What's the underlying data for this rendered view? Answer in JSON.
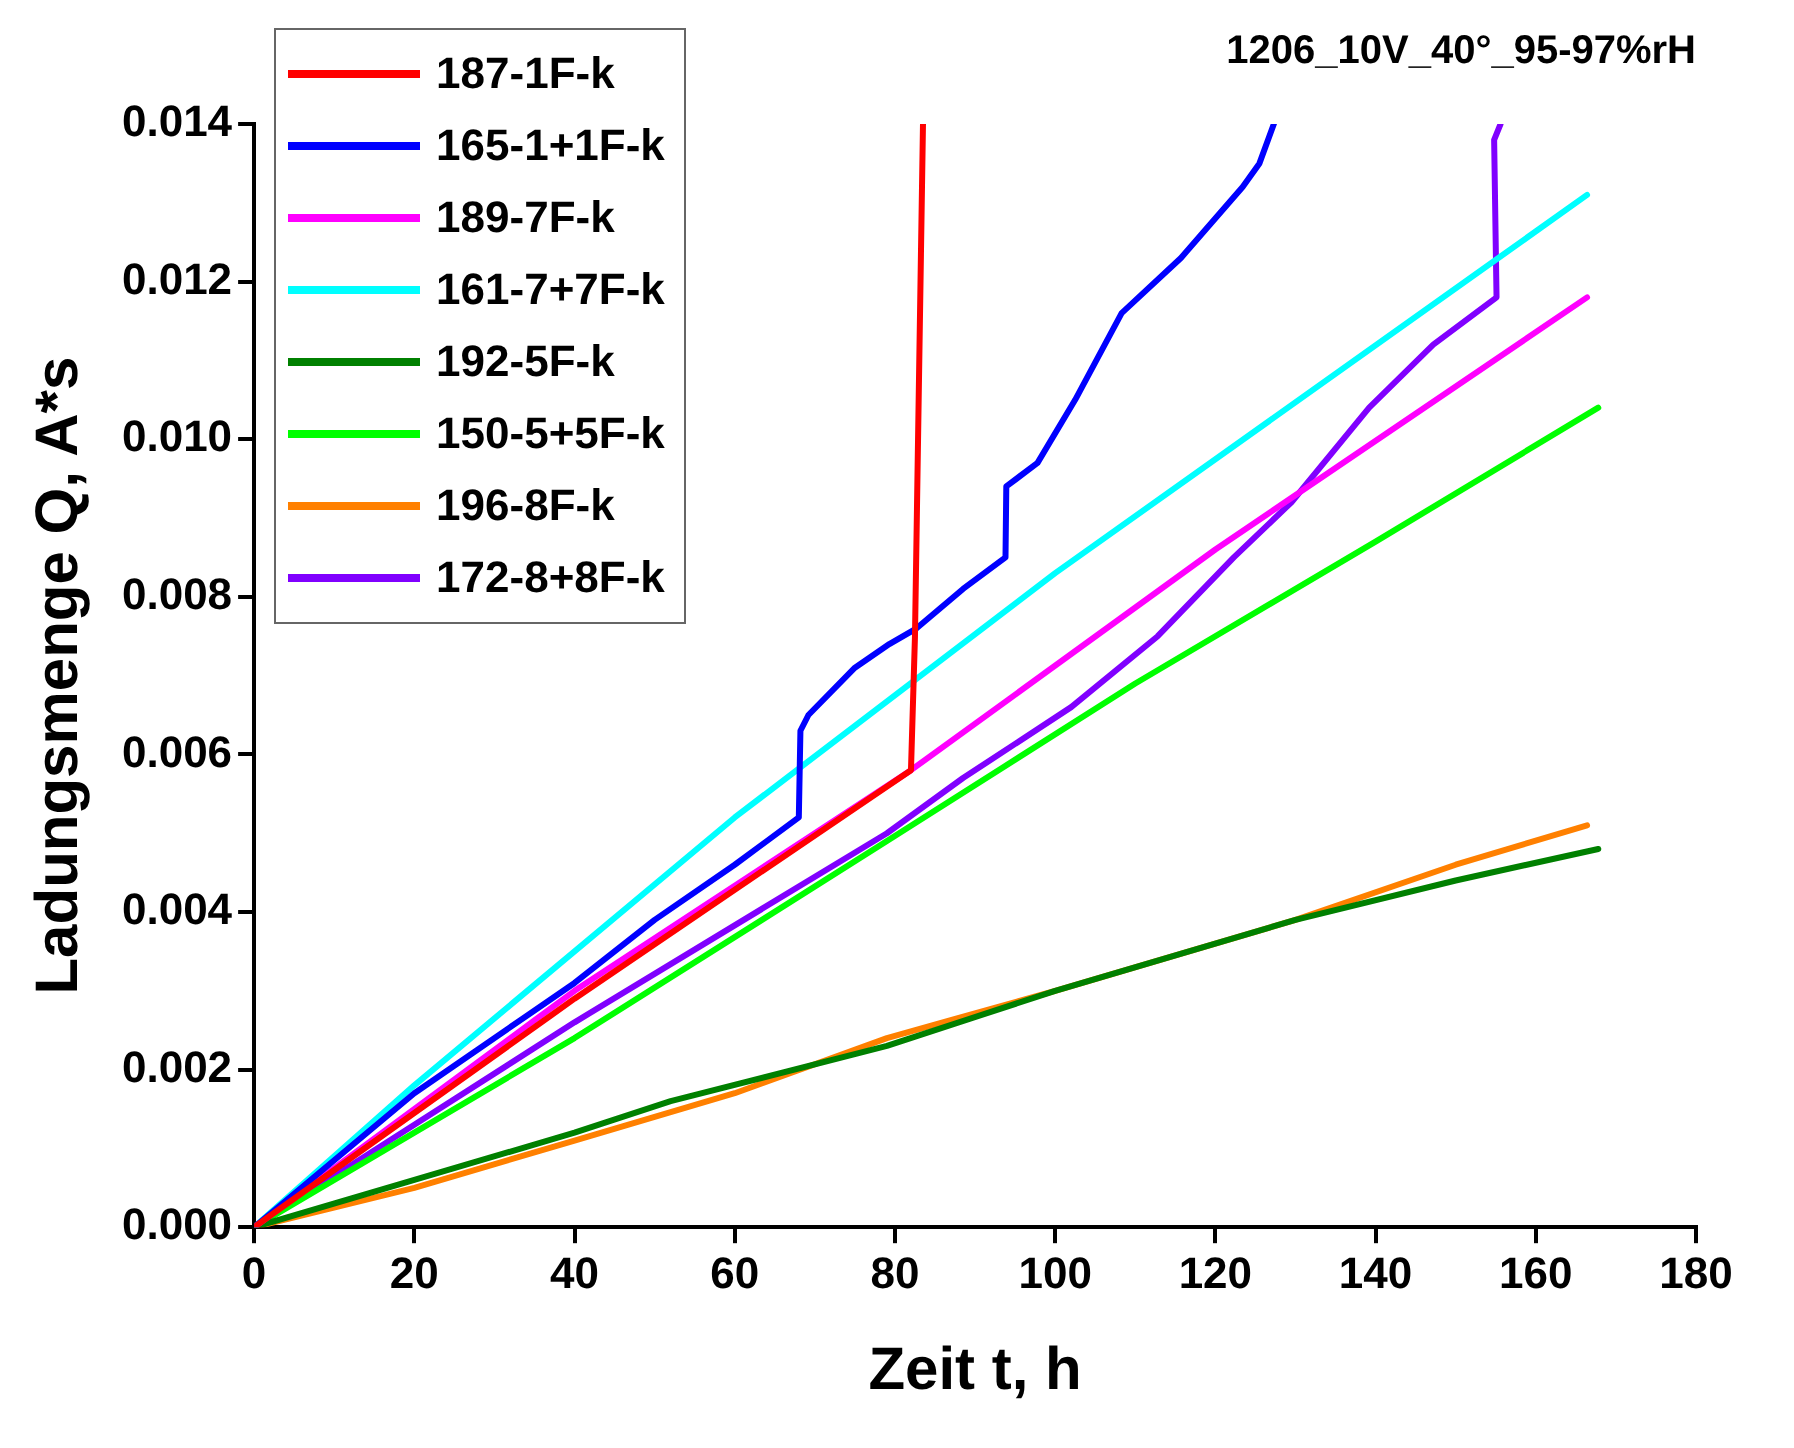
{
  "chart_data": {
    "type": "line",
    "title": "1206_10V_40°_95-97%rH",
    "xlabel": "Zeit t, h",
    "ylabel": "Ladungsmenge Q, A*s",
    "xlim": [
      0,
      180
    ],
    "xticks": [
      0,
      20,
      40,
      60,
      80,
      100,
      120,
      140,
      160,
      180
    ],
    "ylim": [
      0,
      0.014
    ],
    "yticks": [
      {
        "value": 0,
        "label": "0.000"
      },
      {
        "value": 0.002,
        "label": "0.002"
      },
      {
        "value": 0.004,
        "label": "0.004"
      },
      {
        "value": 0.006,
        "label": "0.006"
      },
      {
        "value": 0.008,
        "label": "0.008"
      },
      {
        "value": 0.01,
        "label": "0.010"
      },
      {
        "value": 0.012,
        "label": "0.012"
      },
      {
        "value": 0.014,
        "label": "0.014"
      }
    ],
    "grid": false,
    "legend": "top left",
    "marker": "none",
    "line_style": "solid",
    "series": [
      {
        "name": "187-1F-k",
        "color": "#ff0000",
        "x": [
          0,
          40,
          82,
          82.5,
          83.5
        ],
        "values": [
          0,
          0.0029,
          0.0058,
          0.0075,
          0.014
        ]
      },
      {
        "name": "165-1+1F-k",
        "color": "#0000ff",
        "x": [
          0,
          20,
          40,
          50,
          60,
          68,
          68.2,
          69.2,
          75,
          79.3,
          82.7,
          88.5,
          93.8,
          93.9,
          97.8,
          102.5,
          108.3,
          115.7,
          123.4,
          125.5,
          127.3
        ],
        "values": [
          0,
          0.0017,
          0.0031,
          0.0039,
          0.0046,
          0.0052,
          0.0063,
          0.0065,
          0.0071,
          0.0074,
          0.0076,
          0.0081,
          0.0085,
          0.0094,
          0.0097,
          0.0105,
          0.0116,
          0.0123,
          0.0132,
          0.0135,
          0.014
        ]
      },
      {
        "name": "189-7F-k",
        "color": "#ff00ff",
        "x": [
          0,
          40,
          82,
          120,
          166.4
        ],
        "values": [
          0,
          0.003,
          0.0058,
          0.0086,
          0.0118
        ]
      },
      {
        "name": "161-7+7F-k",
        "color": "#00ffff",
        "x": [
          0,
          20,
          60,
          100,
          166.4
        ],
        "values": [
          0,
          0.0018,
          0.0052,
          0.0083,
          0.0131
        ]
      },
      {
        "name": "192-5F-k",
        "color": "#008000",
        "x": [
          0,
          20,
          40,
          52,
          79,
          100,
          130,
          150,
          167.8
        ],
        "values": [
          0,
          0.0006,
          0.0012,
          0.0016,
          0.0023,
          0.003,
          0.0039,
          0.0044,
          0.0048
        ]
      },
      {
        "name": "150-5+5F-k",
        "color": "#00ff00",
        "x": [
          0,
          20,
          40,
          79,
          110,
          140,
          167.8
        ],
        "values": [
          0,
          0.0012,
          0.0024,
          0.0049,
          0.0069,
          0.0087,
          0.0104
        ]
      },
      {
        "name": "196-8F-k",
        "color": "#ff8000",
        "x": [
          0,
          20,
          40,
          60,
          79,
          100,
          130,
          150,
          166.4
        ],
        "values": [
          0,
          0.0005,
          0.0011,
          0.0017,
          0.0024,
          0.003,
          0.0039,
          0.0046,
          0.0051
        ]
      },
      {
        "name": "172-8+8F-k",
        "color": "#8000ff",
        "x": [
          0,
          20,
          40,
          79,
          88.5,
          102,
          112.8,
          122.3,
          129.5,
          139.2,
          147.2,
          155.1,
          154.8,
          155.6
        ],
        "values": [
          0,
          0.0013,
          0.0026,
          0.005,
          0.0057,
          0.0066,
          0.0075,
          0.0085,
          0.0092,
          0.0104,
          0.0112,
          0.0118,
          0.0138,
          0.014
        ]
      }
    ]
  }
}
